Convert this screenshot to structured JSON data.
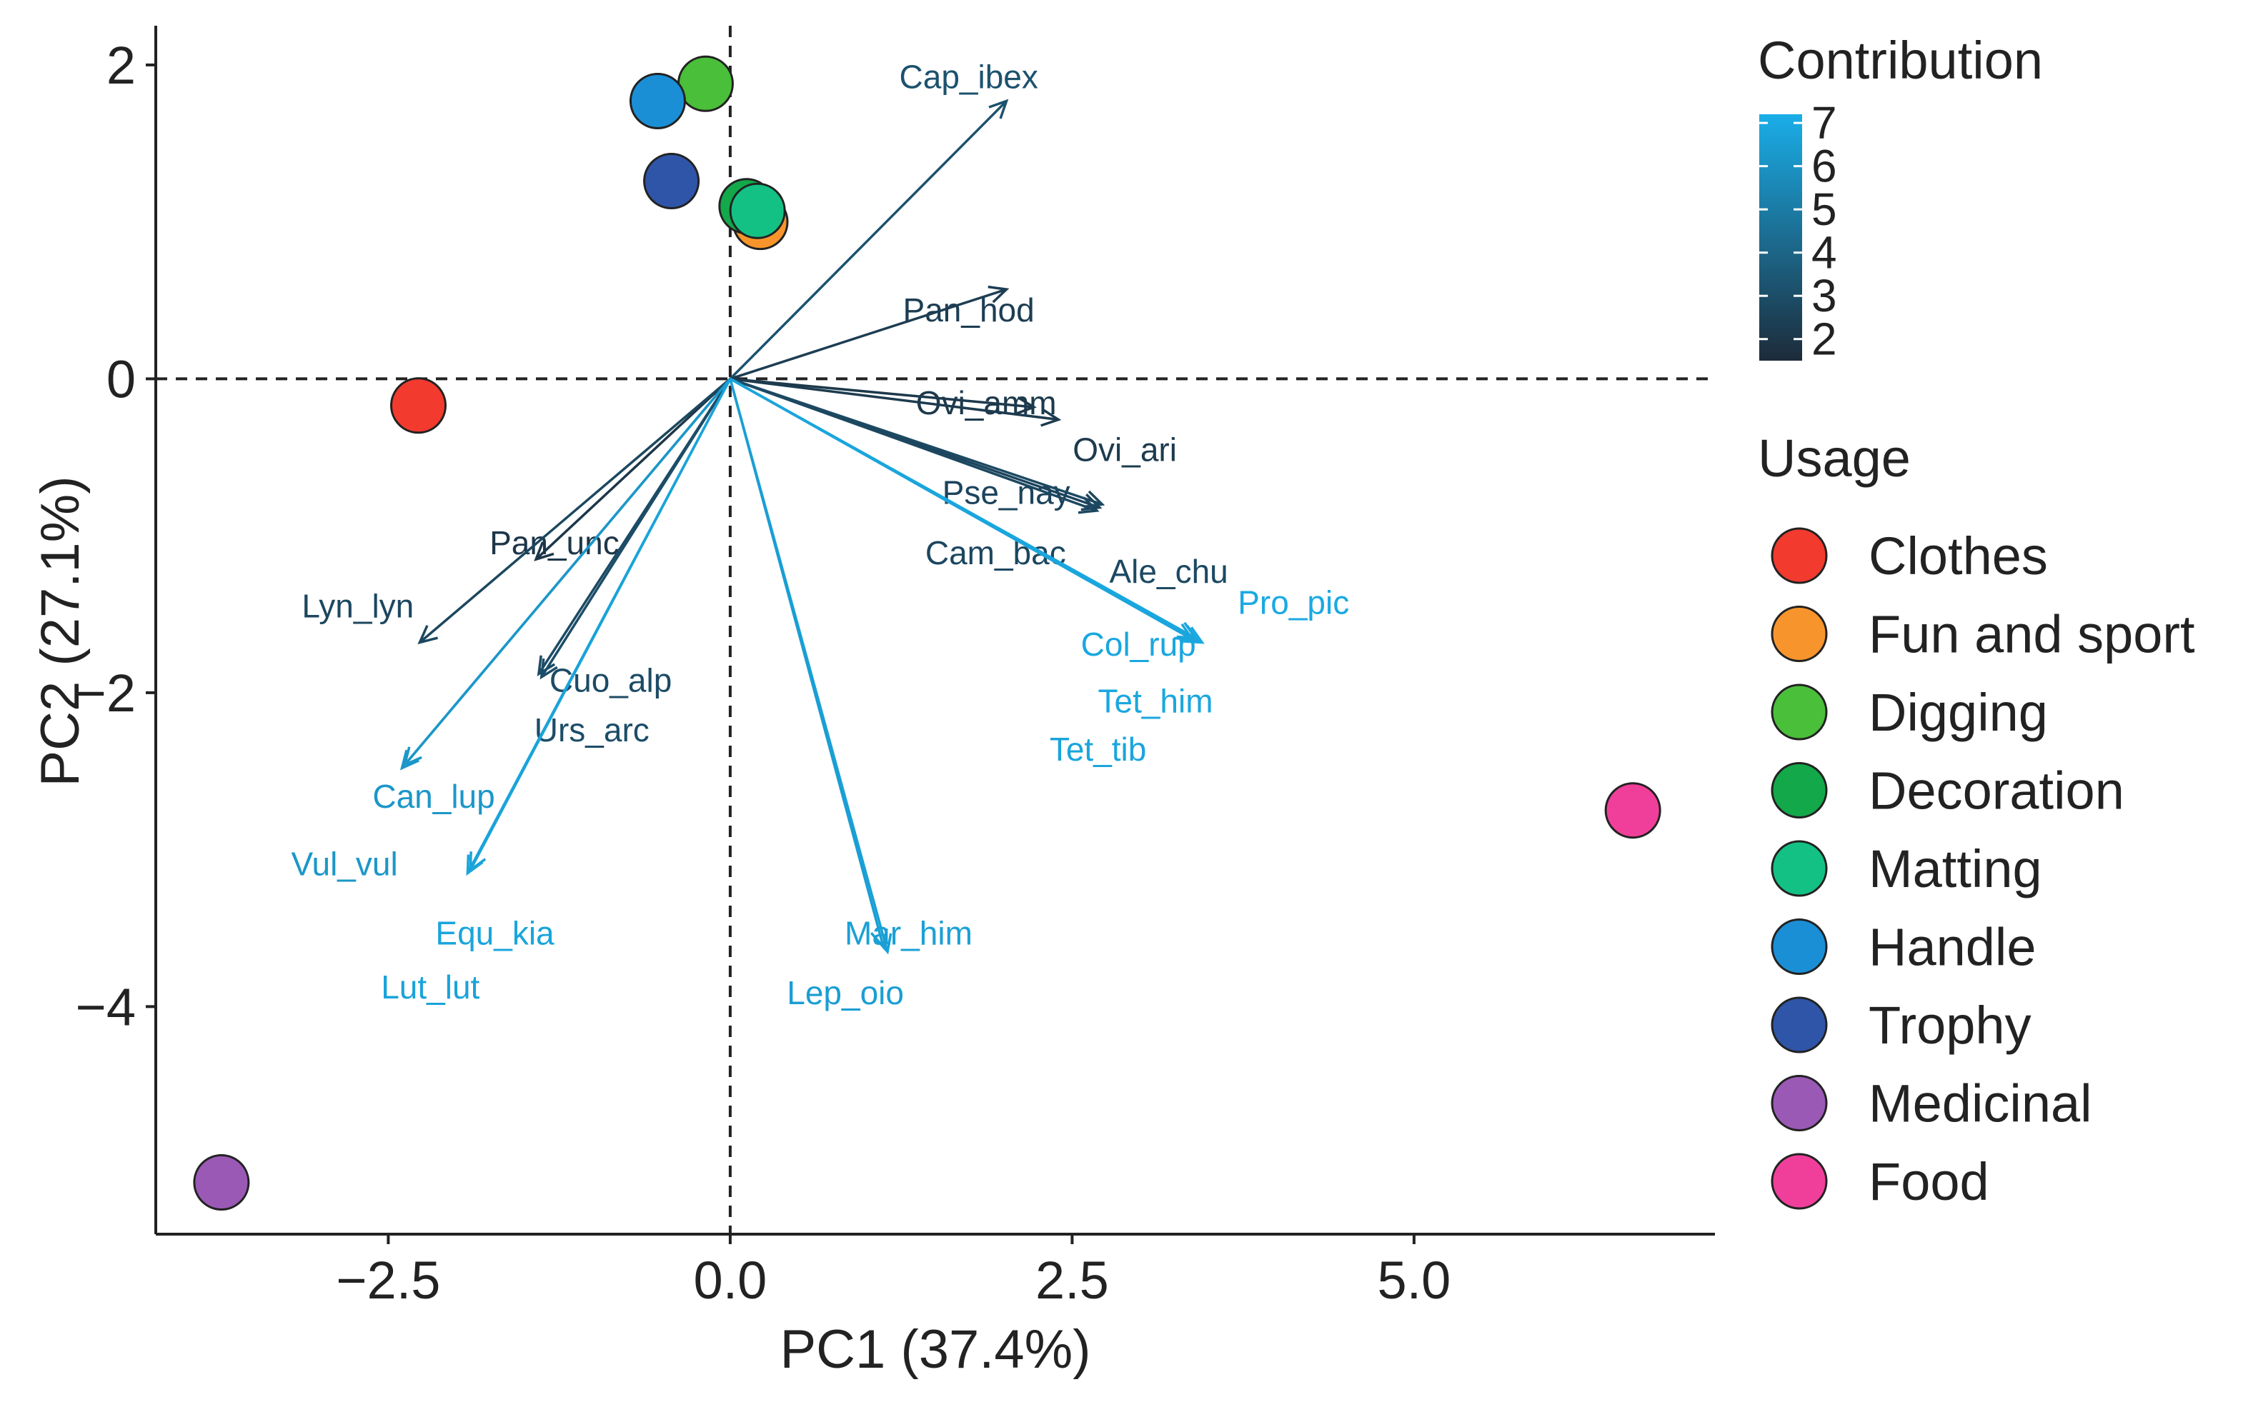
{
  "chart_data": {
    "type": "scatter",
    "subtype": "pca-biplot",
    "xlabel": "PC1 (37.4%)",
    "ylabel": "PC2 (27.1%)",
    "xlim": [
      -4.2,
      7.2
    ],
    "ylim": [
      -5.45,
      2.25
    ],
    "xticks": [
      -2.5,
      0.0,
      2.5,
      5.0
    ],
    "xtick_labels": [
      "−2.5",
      "0.0",
      "2.5",
      "5.0"
    ],
    "yticks": [
      2,
      0,
      -2,
      -4
    ],
    "ytick_labels": [
      "2",
      "0",
      "−2",
      "−4"
    ],
    "reference_lines": {
      "x": 0,
      "y": 0,
      "style": "dashed"
    },
    "grid": false,
    "individuals": [
      {
        "usage": "Clothes",
        "x": -2.28,
        "y": -0.17
      },
      {
        "usage": "Fun and sport",
        "x": 0.22,
        "y": 1.0
      },
      {
        "usage": "Digging",
        "x": -0.18,
        "y": 1.88
      },
      {
        "usage": "Decoration",
        "x": 0.12,
        "y": 1.1
      },
      {
        "usage": "Matting",
        "x": 0.2,
        "y": 1.07
      },
      {
        "usage": "Handle",
        "x": -0.53,
        "y": 1.77
      },
      {
        "usage": "Trophy",
        "x": -0.43,
        "y": 1.26
      },
      {
        "usage": "Medicinal",
        "x": -3.72,
        "y": -5.12
      },
      {
        "usage": "Food",
        "x": 6.6,
        "y": -2.75
      }
    ],
    "variables": [
      {
        "name": "Cap_ibex",
        "x": 2.02,
        "y": 1.77,
        "contrib": 3.2
      },
      {
        "name": "Pan_hod",
        "x": 2.02,
        "y": 0.57,
        "contrib": 2.3
      },
      {
        "name": "Ovi_amm",
        "x": 2.22,
        "y": -0.18,
        "contrib": 2.1
      },
      {
        "name": "Ovi_ari",
        "x": 2.4,
        "y": -0.26,
        "contrib": 2.2
      },
      {
        "name": "Pse_nay",
        "x": 2.7,
        "y": -0.82,
        "contrib": 2.6
      },
      {
        "name": "Cam_bac",
        "x": 2.68,
        "y": -0.84,
        "contrib": 2.7
      },
      {
        "name": "Ale_chu",
        "x": 2.72,
        "y": -0.8,
        "contrib": 2.8
      },
      {
        "name": "Pro_pic",
        "x": 3.45,
        "y": -1.68,
        "contrib": 7.0
      },
      {
        "name": "Col_rup",
        "x": 3.4,
        "y": -1.65,
        "contrib": 6.9
      },
      {
        "name": "Tet_him",
        "x": 3.42,
        "y": -1.67,
        "contrib": 6.9
      },
      {
        "name": "Tet_tib",
        "x": 3.38,
        "y": -1.66,
        "contrib": 6.8
      },
      {
        "name": "Mar_him",
        "x": 1.15,
        "y": -3.65,
        "contrib": 6.6
      },
      {
        "name": "Lep_oio",
        "x": 1.12,
        "y": -3.62,
        "contrib": 6.5
      },
      {
        "name": "Pan_unc",
        "x": -1.42,
        "y": -1.15,
        "contrib": 2.0
      },
      {
        "name": "Lyn_lyn",
        "x": -2.27,
        "y": -1.68,
        "contrib": 2.7
      },
      {
        "name": "Cuo_alp",
        "x": -1.4,
        "y": -1.88,
        "contrib": 2.9
      },
      {
        "name": "Urs_arc",
        "x": -1.38,
        "y": -1.9,
        "contrib": 3.0
      },
      {
        "name": "Can_lup",
        "x": -2.38,
        "y": -2.46,
        "contrib": 6.2
      },
      {
        "name": "Vul_vul",
        "x": -2.4,
        "y": -2.48,
        "contrib": 6.2
      },
      {
        "name": "Equ_kia",
        "x": -1.92,
        "y": -3.15,
        "contrib": 6.8
      },
      {
        "name": "Lut_lut",
        "x": -1.9,
        "y": -3.13,
        "contrib": 6.7
      }
    ],
    "legend_contribution": {
      "title": "Contribution",
      "min": 1.5,
      "max": 7.2,
      "ticks": [
        7,
        6,
        5,
        4,
        3,
        2
      ],
      "color_low": "#1d2b3a",
      "color_high": "#1aaee8",
      "placement": "top-right"
    },
    "legend_usage": {
      "title": "Usage",
      "placement": "right",
      "items": [
        {
          "label": "Clothes",
          "color": "#f23a2f"
        },
        {
          "label": "Fun and sport",
          "color": "#f7952c"
        },
        {
          "label": "Digging",
          "color": "#4abf3a"
        },
        {
          "label": "Decoration",
          "color": "#13a84a"
        },
        {
          "label": "Matting",
          "color": "#14c184"
        },
        {
          "label": "Handle",
          "color": "#1a8fd6"
        },
        {
          "label": "Trophy",
          "color": "#2f55a8"
        },
        {
          "label": "Medicinal",
          "color": "#9b59b6"
        },
        {
          "label": "Food",
          "color": "#f03f9a"
        }
      ]
    }
  }
}
